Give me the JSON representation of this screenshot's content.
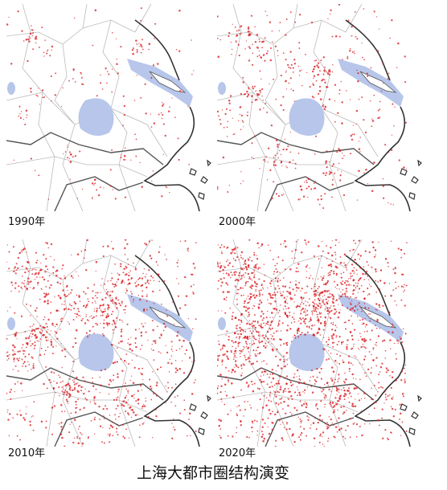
{
  "panels": [
    {
      "label": "1990年"
    },
    {
      "label": "2000年"
    },
    {
      "label": "2010年"
    },
    {
      "label": "2020年"
    }
  ],
  "title": "上海大都市圈结构演变"
}
